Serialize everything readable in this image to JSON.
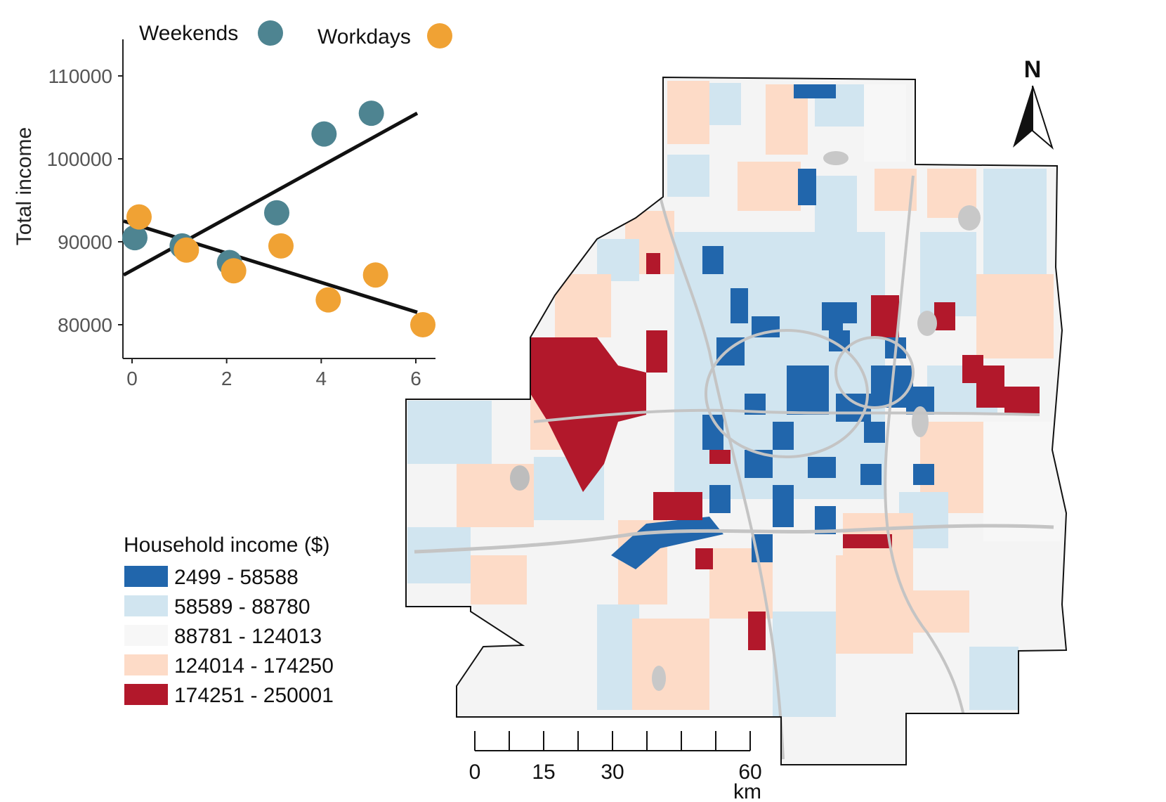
{
  "scatter": {
    "ylabel": "Total income",
    "legend": [
      {
        "label": "Weekends",
        "color": "#4e8491"
      },
      {
        "label": "Workdays",
        "color": "#f0a234"
      }
    ],
    "y_ticks": [
      "110000",
      "100000",
      "90000",
      "80000"
    ],
    "x_ticks": [
      "0",
      "2",
      "4",
      "6"
    ]
  },
  "chart_data": {
    "type": "scatter",
    "xlim": [
      0,
      6.5
    ],
    "ylim": [
      76000,
      114000
    ],
    "ylabel": "Total income",
    "series": [
      {
        "name": "Weekends",
        "color": "#4e8491",
        "x": [
          0,
          1,
          2,
          3,
          4,
          5
        ],
        "y": [
          90500,
          89500,
          87500,
          93500,
          103000,
          105500
        ],
        "trend": {
          "x": [
            0,
            6
          ],
          "y": [
            86000,
            105500
          ]
        }
      },
      {
        "name": "Workdays",
        "color": "#f0a234",
        "x": [
          0,
          1,
          2,
          3,
          4,
          5,
          6
        ],
        "y": [
          93000,
          89000,
          86500,
          89500,
          83000,
          86000,
          80000
        ],
        "trend": {
          "x": [
            0,
            6
          ],
          "y": [
            92500,
            81500
          ]
        }
      }
    ]
  },
  "map": {
    "legend_title": "Household income ($)",
    "classes": [
      {
        "label": "2499 - 58588",
        "color": "#2166ac"
      },
      {
        "label": "58589 - 88780",
        "color": "#d1e5f0"
      },
      {
        "label": "88781 - 124013",
        "color": "#f7f7f7"
      },
      {
        "label": "124014 - 174250",
        "color": "#fddbc7"
      },
      {
        "label": "174251 - 250001",
        "color": "#b2182b"
      }
    ],
    "north_label": "N",
    "scale": {
      "labels": [
        "0",
        "15",
        "30",
        "60"
      ],
      "unit": "km"
    }
  }
}
